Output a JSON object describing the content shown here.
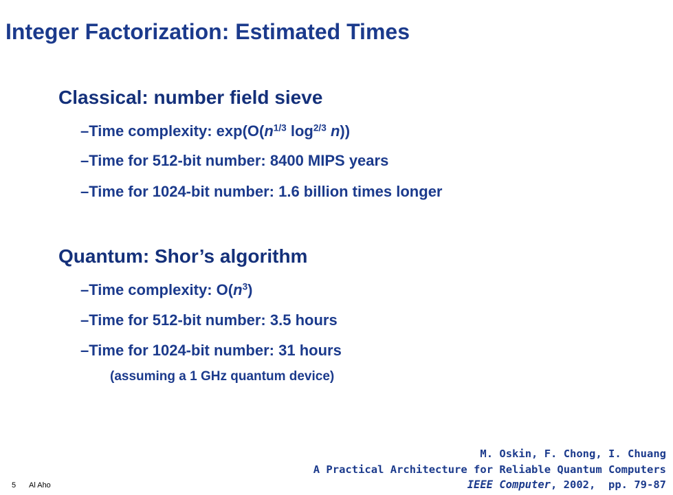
{
  "title": "Integer Factorization: Estimated Times",
  "sections": [
    {
      "heading": "Classical: number field sieve",
      "items": [
        [
          {
            "t": "–Time complexity: exp(O("
          },
          {
            "t": "n",
            "f": "italic"
          },
          {
            "t": "1/3",
            "f": "sup"
          },
          {
            "t": " log"
          },
          {
            "t": "2/3",
            "f": "sup"
          },
          {
            "t": " "
          },
          {
            "t": "n",
            "f": "italic"
          },
          {
            "t": "))"
          }
        ],
        [
          {
            "t": "–Time for 512-bit number: 8400 MIPS years"
          }
        ],
        [
          {
            "t": "–Time for 1024-bit number: 1.6 billion times longer"
          }
        ]
      ]
    },
    {
      "heading": "Quantum: Shor’s algorithm",
      "items": [
        [
          {
            "t": "–Time complexity: O("
          },
          {
            "t": "n",
            "f": "italic"
          },
          {
            "t": "3",
            "f": "sup"
          },
          {
            "t": ")"
          }
        ],
        [
          {
            "t": "–Time for 512-bit number: 3.5 hours"
          }
        ],
        [
          {
            "t": "–Time for 1024-bit number: 31 hours"
          }
        ]
      ],
      "note": "(assuming a 1 GHz quantum device)"
    }
  ],
  "citation": [
    [
      {
        "t": "M. Oskin, F. Chong, I. Chuang"
      }
    ],
    [
      {
        "t": "A Practical Architecture for Reliable Quantum Computers"
      }
    ],
    [
      {
        "t": "IEEE Computer",
        "f": "italic"
      },
      {
        "t": ", 2002,  pp. 79-87"
      }
    ]
  ],
  "footer": {
    "page": "5",
    "author": "Al Aho"
  }
}
